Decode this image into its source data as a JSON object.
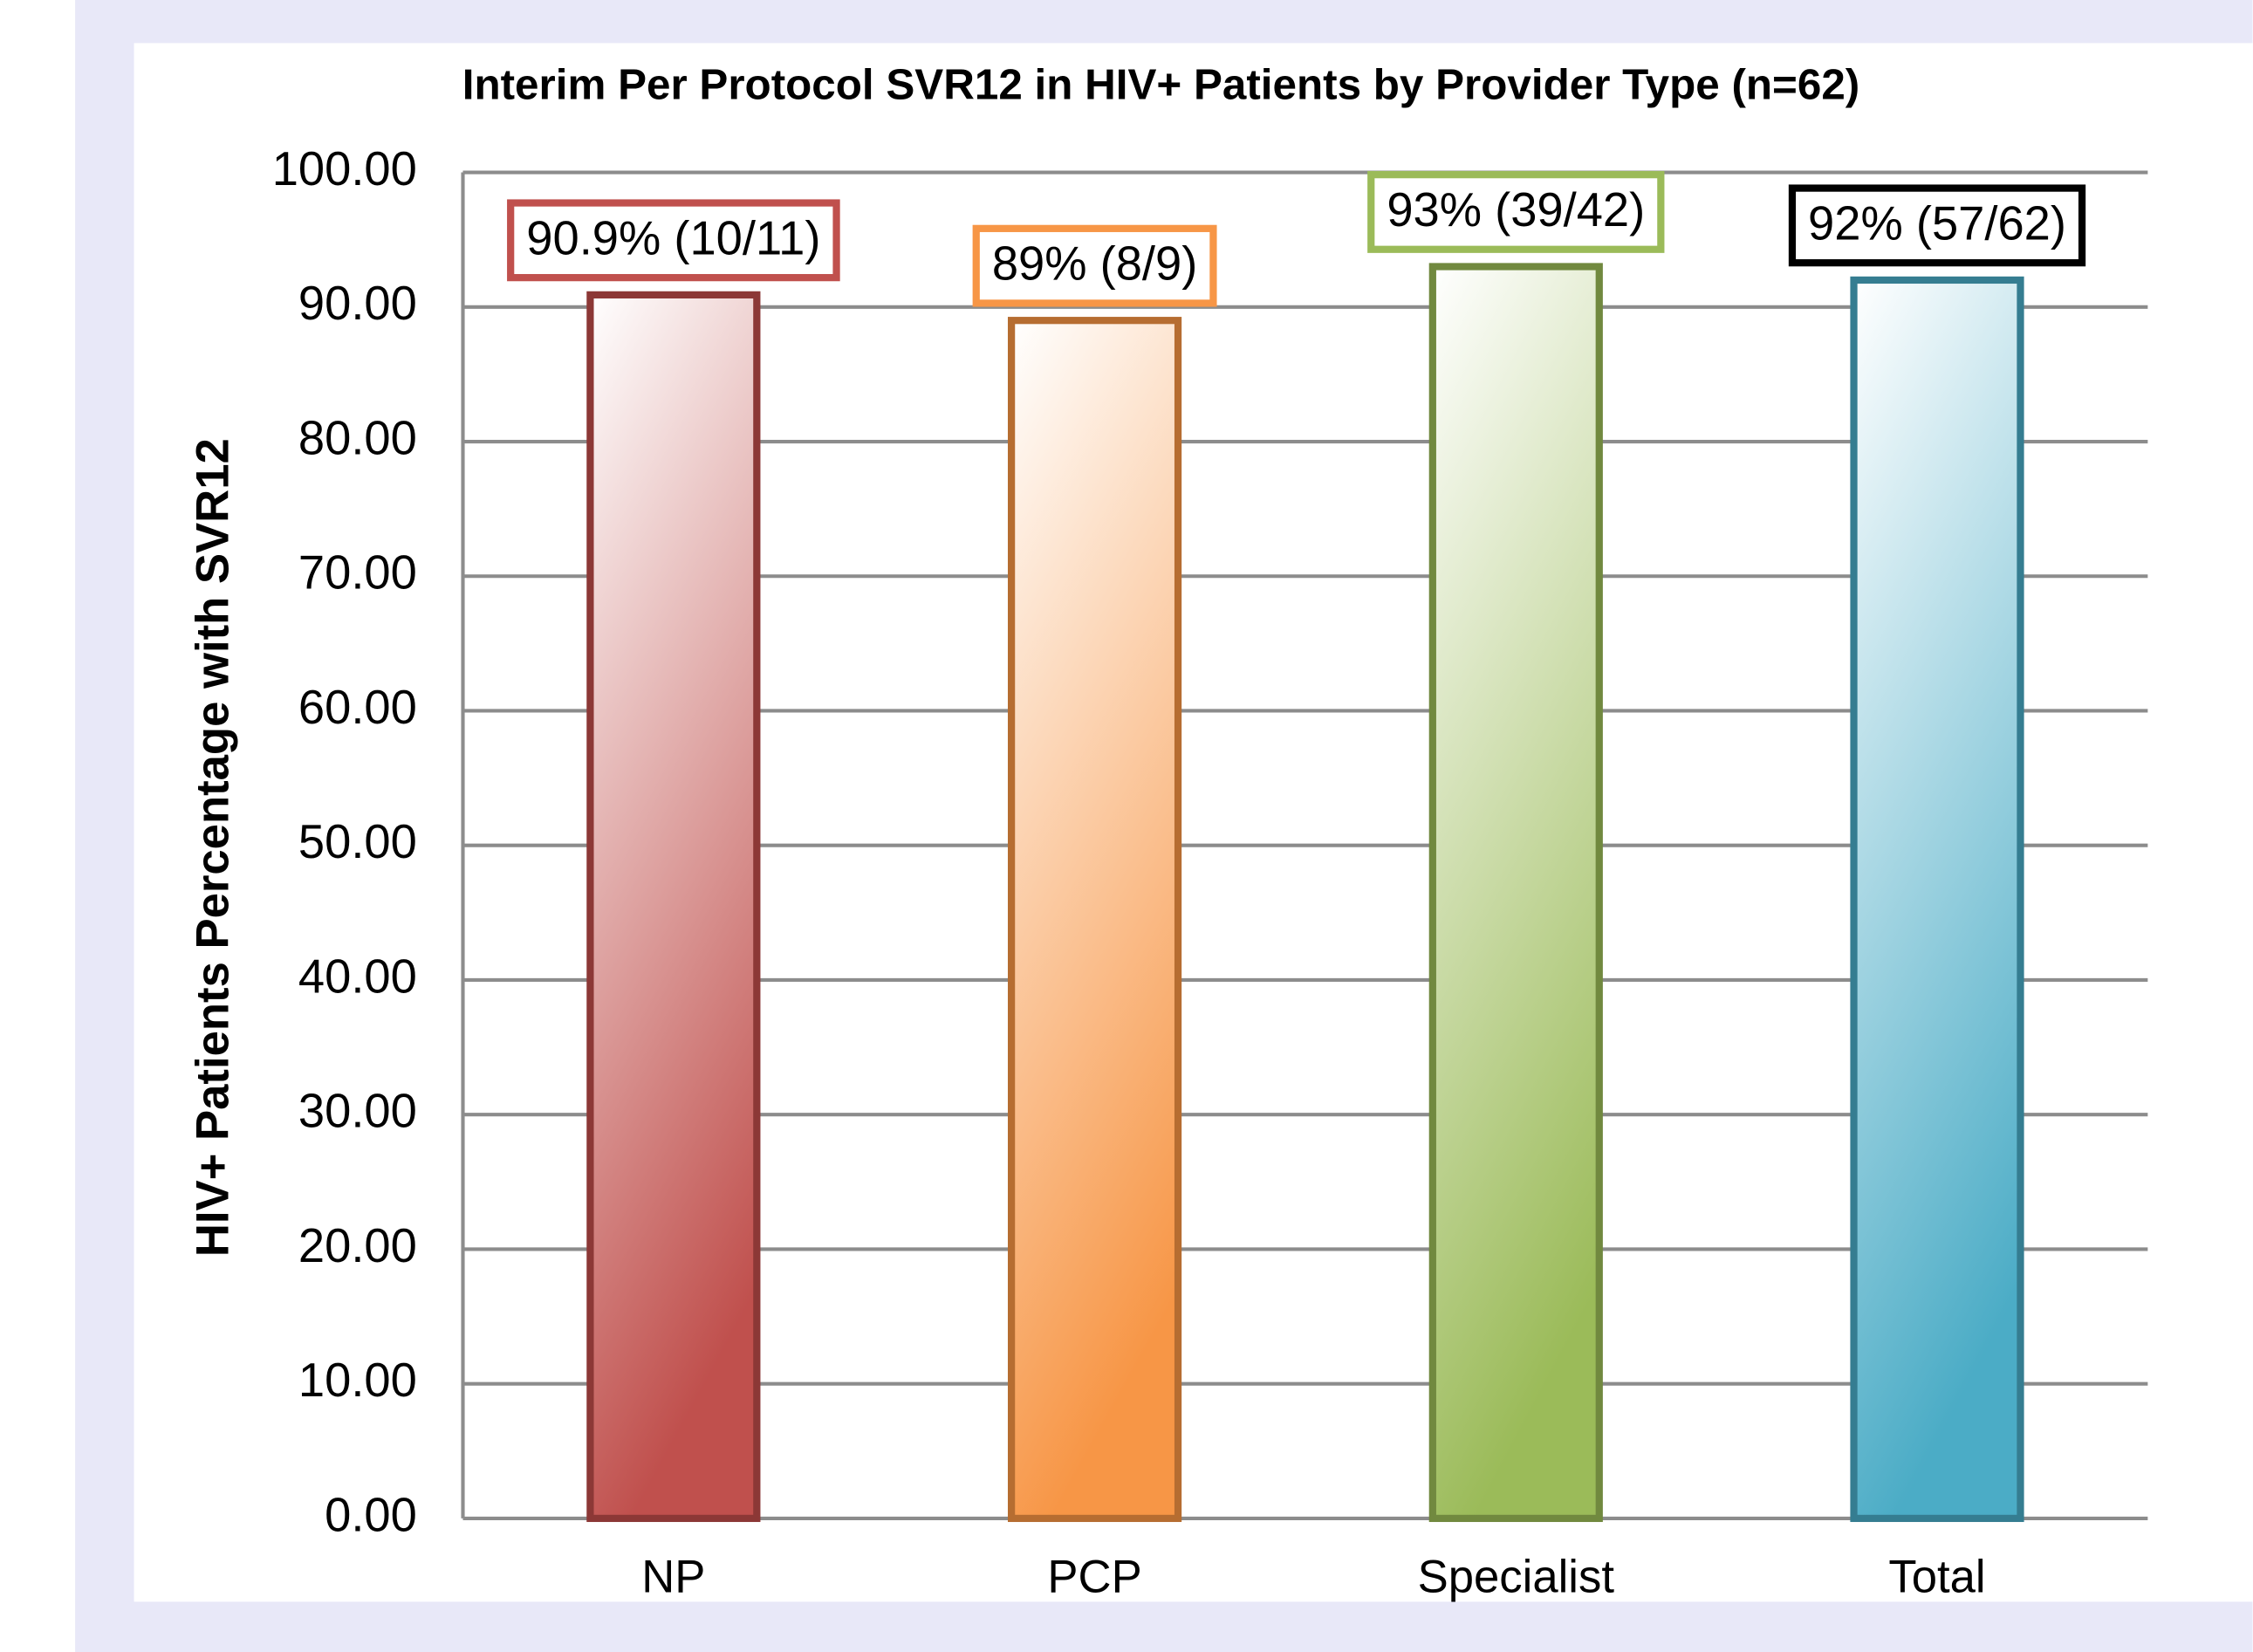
{
  "chart_data": {
    "type": "bar",
    "title": "Interim Per Protocol SVR12 in HIV+ Patients by Provider Type (n=62)",
    "y_label": "HIV+ Patients Percentage with SVR12",
    "categories": [
      "NP",
      "PCP",
      "Specialist",
      "Total"
    ],
    "values": [
      90.9,
      89,
      93,
      92
    ],
    "value_labels": [
      "90.9% (10/11)",
      "89% (8/9)",
      "93% (39/42)",
      "92% (57/62)"
    ],
    "colors": [
      "#c0504d",
      "#f79646",
      "#9bbb59",
      "#4bacc6"
    ],
    "edge_colors": [
      "#8c3836",
      "#b66d31",
      "#71893f",
      "#357d91"
    ],
    "label_box_colors": [
      "#c0504d",
      "#f79646",
      "#9bbb59",
      "#000000"
    ],
    "ylim": [
      0,
      100
    ],
    "yticks": [
      {
        "value": 0,
        "label": "0.00"
      },
      {
        "value": 10,
        "label": "10.00"
      },
      {
        "value": 20,
        "label": "20.00"
      },
      {
        "value": 30,
        "label": "30.00"
      },
      {
        "value": 40,
        "label": "40.00"
      },
      {
        "value": 50,
        "label": "50.00"
      },
      {
        "value": 60,
        "label": "60.00"
      },
      {
        "value": 70,
        "label": "70.00"
      },
      {
        "value": 80,
        "label": "80.00"
      },
      {
        "value": 90,
        "label": "90.00"
      },
      {
        "value": 100,
        "label": "100.00"
      }
    ],
    "grid": true
  }
}
